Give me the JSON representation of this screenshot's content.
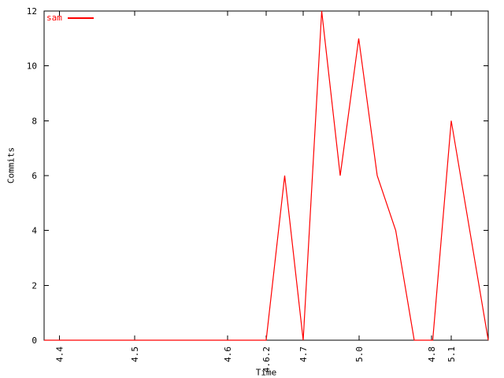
{
  "chart_data": {
    "type": "line",
    "title": "",
    "xlabel": "Time",
    "ylabel": "Commits",
    "ylim": [
      0,
      12
    ],
    "yticks": [
      0,
      2,
      4,
      6,
      8,
      10,
      12
    ],
    "xticks": [
      {
        "label": "4.4",
        "pos": 0.035
      },
      {
        "label": "4.5",
        "pos": 0.204
      },
      {
        "label": "4.6",
        "pos": 0.413
      },
      {
        "label": "4.6.2",
        "pos": 0.5
      },
      {
        "label": "4.7",
        "pos": 0.583
      },
      {
        "label": "5.0",
        "pos": 0.709
      },
      {
        "label": "4.8",
        "pos": 0.872
      },
      {
        "label": "5.1",
        "pos": 0.917
      }
    ],
    "x_tick_label_rotation": -90,
    "series": [
      {
        "name": "sam",
        "color": "#ff0000",
        "values": [
          0,
          0,
          0,
          0,
          0,
          0,
          0,
          0,
          0,
          0,
          0,
          0,
          0,
          6,
          0,
          12,
          6,
          11,
          6,
          4,
          0,
          0,
          8,
          4,
          0
        ]
      }
    ],
    "x_points_evenly_spaced": true,
    "grid": false,
    "legend_position": "top-left-inside",
    "axis_color": "#000000",
    "background_color": "#ffffff"
  }
}
